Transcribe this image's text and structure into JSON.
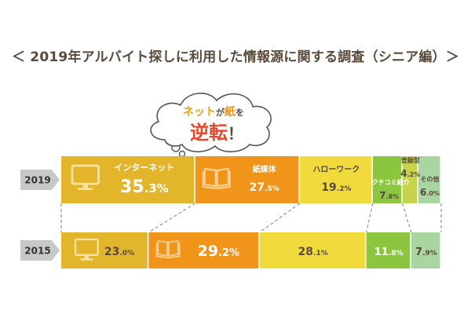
{
  "title": "＜ 2019年アルバイト探しに利用した情報源に関する調査（シニア編）＞",
  "callout": {
    "line1_part1": "ネット",
    "line1_part2": "が",
    "line1_part3": "紙",
    "line1_part4": "を",
    "line2": "逆転",
    "line2_mark": "！"
  },
  "colors": {
    "internet": "#e3b52a",
    "paper": "#f0941a",
    "hellowork": "#f1db3c",
    "kuchikomi": "#8cc63f",
    "touroku": "#c5d44a",
    "other": "#a8d5a0",
    "year_tag": "#c8c8c8",
    "title": "#5a4a3c"
  },
  "icons": [
    "monitor-icon",
    "book-icon"
  ],
  "chart_data": {
    "type": "bar",
    "orientation": "horizontal-stacked-100",
    "categories": [
      "2019",
      "2015"
    ],
    "series": [
      {
        "key": "internet",
        "name": "インターネット",
        "values": [
          35.3,
          23.0
        ],
        "labels": [
          {
            "int": "35",
            "dec": ".3",
            "pct": "%"
          },
          {
            "int": "23",
            "dec": ".0",
            "pct": "%"
          }
        ]
      },
      {
        "key": "paper",
        "name": "紙媒体",
        "values": [
          27.5,
          29.2
        ],
        "labels": [
          {
            "int": "27",
            "dec": ".5",
            "pct": "%"
          },
          {
            "int": "29",
            "dec": ".2",
            "pct": "%"
          }
        ]
      },
      {
        "key": "hellowork",
        "name": "ハローワーク",
        "values": [
          19.2,
          28.1
        ],
        "labels": [
          {
            "int": "19",
            "dec": ".2",
            "pct": "%"
          },
          {
            "int": "28",
            "dec": ".1",
            "pct": "%"
          }
        ]
      },
      {
        "key": "kuchikomi",
        "name": "クチコミ紹介",
        "values": [
          7.8,
          11.8
        ],
        "labels": [
          {
            "int": "7",
            "dec": ".8",
            "pct": "%"
          },
          {
            "int": "11",
            "dec": ".8",
            "pct": "%"
          }
        ]
      },
      {
        "key": "touroku",
        "name": "登録型",
        "values": [
          4.2,
          0
        ],
        "labels": [
          {
            "int": "4",
            "dec": ".2",
            "pct": "%"
          },
          null
        ]
      },
      {
        "key": "other",
        "name": "その他",
        "values": [
          6.0,
          7.9
        ],
        "labels": [
          {
            "int": "6",
            "dec": ".0",
            "pct": "%"
          },
          {
            "int": "7",
            "dec": ".9",
            "pct": "%"
          }
        ]
      }
    ]
  }
}
